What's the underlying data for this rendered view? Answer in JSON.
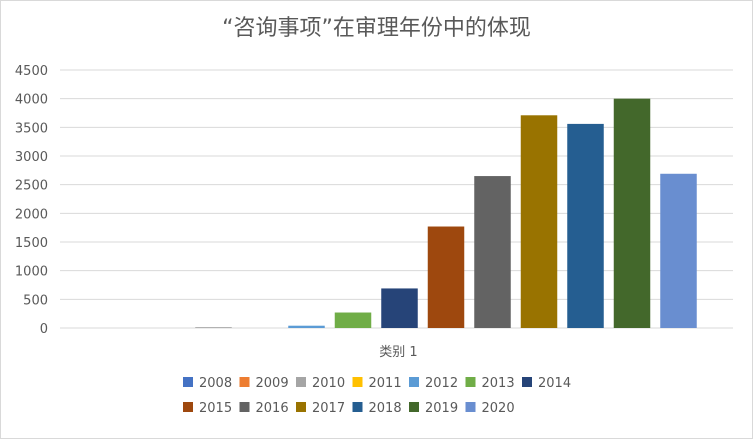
{
  "chart_data": {
    "type": "bar",
    "title": "“咨询事项”在审理年份中的体现",
    "categories": [
      "类别 1"
    ],
    "ylim": [
      0,
      4500
    ],
    "yticks": [
      0,
      500,
      1000,
      1500,
      2000,
      2500,
      3000,
      3500,
      4000,
      4500
    ],
    "grid": true,
    "legend_position": "bottom",
    "series": [
      {
        "name": "2008",
        "values": [
          0
        ],
        "color": "#4472c4"
      },
      {
        "name": "2009",
        "values": [
          0
        ],
        "color": "#ed7d31"
      },
      {
        "name": "2010",
        "values": [
          15
        ],
        "color": "#a5a5a5"
      },
      {
        "name": "2011",
        "values": [
          0
        ],
        "color": "#ffc000"
      },
      {
        "name": "2012",
        "values": [
          40
        ],
        "color": "#5b9bd5"
      },
      {
        "name": "2013",
        "values": [
          270
        ],
        "color": "#70ad47"
      },
      {
        "name": "2014",
        "values": [
          690
        ],
        "color": "#264478"
      },
      {
        "name": "2015",
        "values": [
          1770
        ],
        "color": "#9e480e"
      },
      {
        "name": "2016",
        "values": [
          2650
        ],
        "color": "#636363"
      },
      {
        "name": "2017",
        "values": [
          3710
        ],
        "color": "#997300"
      },
      {
        "name": "2018",
        "values": [
          3560
        ],
        "color": "#255e91"
      },
      {
        "name": "2019",
        "values": [
          4000
        ],
        "color": "#43682b"
      },
      {
        "name": "2020",
        "values": [
          2690
        ],
        "color": "#698ed0"
      }
    ]
  }
}
